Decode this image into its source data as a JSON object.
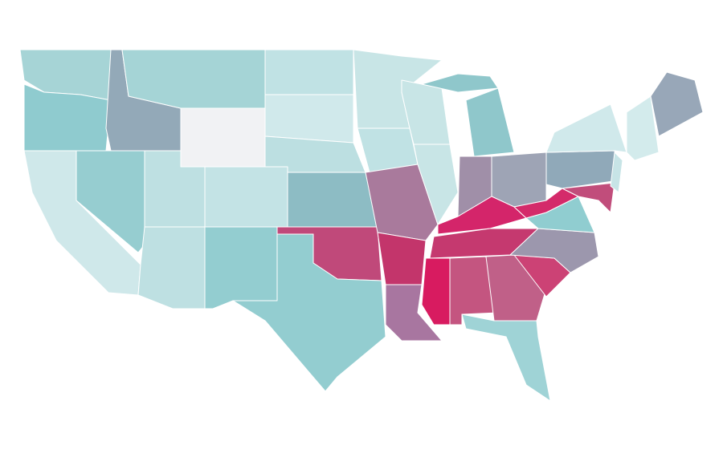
{
  "map": {
    "fills": [
      "#a6d4d6",
      "#8fcbcf",
      "#cfe8ea",
      "#96cdd0",
      "#93a9b8",
      "#a5d4d6",
      "#f1f2f4",
      "#bee0e2",
      "#c3e3e5",
      "#bee0e2",
      "#93cdd0",
      "#c0e2e4",
      "#d0e9eb",
      "#bcdfe1",
      "#8dbcc4",
      "#c0497a",
      "#93cdd0",
      "#c8e5e6",
      "#c0e2e4",
      "#a97a9c",
      "#c3356b",
      "#a876a0",
      "#c8e5e6",
      "#c8e5e6",
      "#8fc7cb",
      "#a08fa8",
      "#9ea4b5",
      "#d4256a",
      "#c5396f",
      "#d81b60",
      "#c45580",
      "#c06088",
      "#9fd3d6",
      "#cc4275",
      "#9c97ad",
      "#90cdd0",
      "#d42a6a",
      "#90a9b9",
      "#c14d7b",
      "#d0e9eb",
      "#c7e4e6",
      "#d3ebec",
      "#98a7b8"
    ]
  }
}
